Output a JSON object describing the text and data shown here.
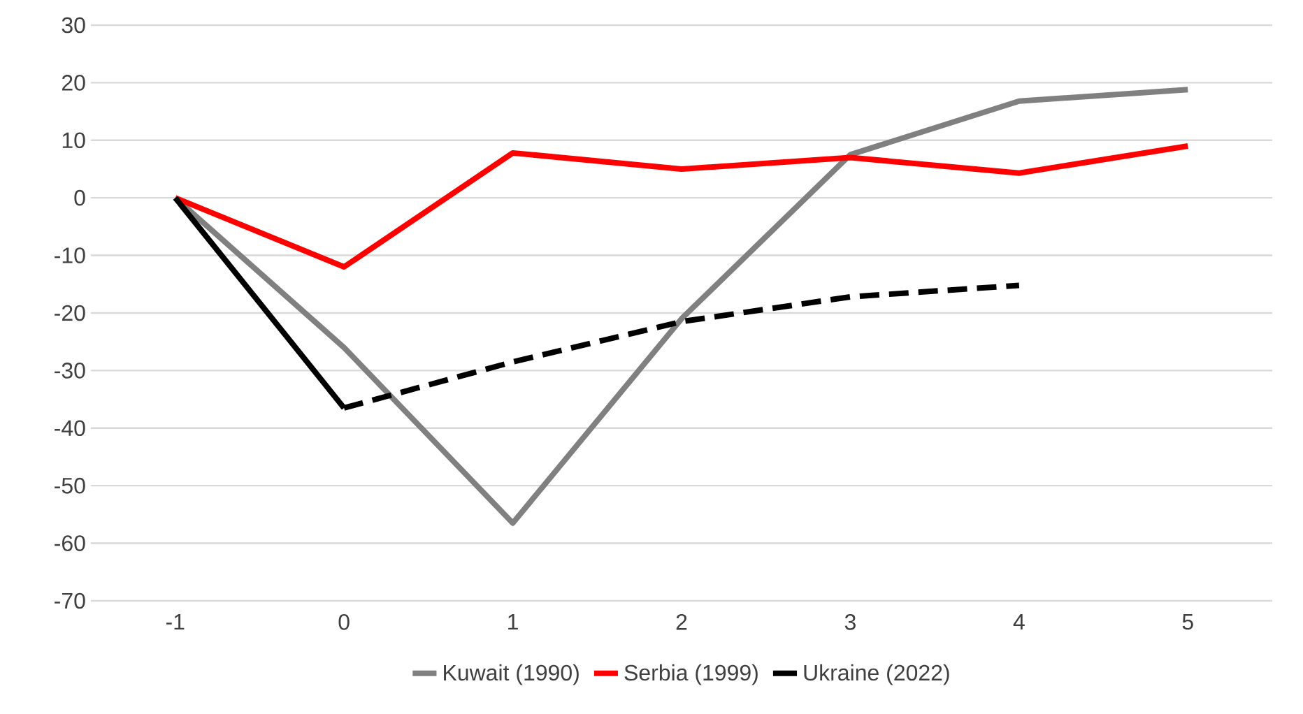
{
  "chart_data": {
    "type": "line",
    "categories": [
      "-1",
      "0",
      "1",
      "2",
      "3",
      "4",
      "5"
    ],
    "series": [
      {
        "name": "Kuwait (1990)",
        "color": "#808080",
        "values": [
          0,
          -26,
          -56.5,
          -21,
          7.5,
          16.8,
          18.8
        ]
      },
      {
        "name": "Serbia (1999)",
        "color": "#ff0000",
        "values": [
          0,
          -12,
          7.8,
          5,
          7,
          4.3,
          9
        ]
      },
      {
        "name": "Ukraine (2022)",
        "color": "#000000",
        "values": [
          0,
          -36.5,
          null,
          null,
          null,
          null,
          null
        ]
      },
      {
        "color": "#000000",
        "line_style": "dashed",
        "values": [
          null,
          -36.5,
          -28.5,
          -21.5,
          -17.2,
          -15.2,
          null
        ]
      }
    ],
    "ylim": [
      -70,
      30
    ],
    "yticks": [
      -70,
      -60,
      -50,
      -40,
      -30,
      -20,
      -10,
      0,
      10,
      20,
      30
    ],
    "grid": "y",
    "legend": "bottom",
    "marker": "none",
    "line_style": "solid"
  }
}
